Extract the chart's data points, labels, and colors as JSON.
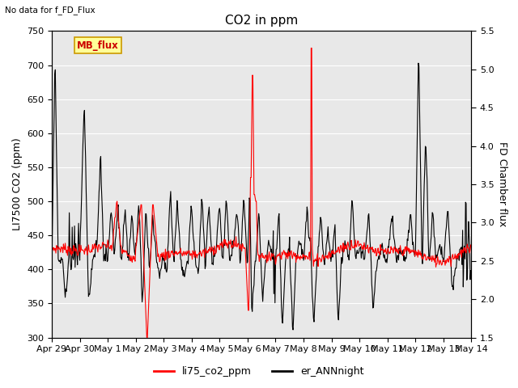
{
  "title": "CO2 in ppm",
  "top_left_text": "No data for f_FD_Flux",
  "ylabel_left": "LI7500 CO2 (ppm)",
  "ylabel_right": "FD Chamber flux",
  "ylim_left": [
    300,
    750
  ],
  "ylim_right": [
    1.5,
    5.5
  ],
  "yticks_left": [
    300,
    350,
    400,
    450,
    500,
    550,
    600,
    650,
    700,
    750
  ],
  "yticks_right": [
    1.5,
    2.0,
    2.5,
    3.0,
    3.5,
    4.0,
    4.5,
    5.0,
    5.5
  ],
  "xtick_labels": [
    "Apr 29",
    "Apr 30",
    "May 1",
    "May 2",
    "May 3",
    "May 4",
    "May 5",
    "May 6",
    "May 7",
    "May 8",
    "May 9",
    "May 10",
    "May 11",
    "May 12",
    "May 13",
    "May 14"
  ],
  "legend_labels": [
    "li75_co2_ppm",
    "er_ANNnight"
  ],
  "legend_colors": [
    "#ff0000",
    "#000000"
  ],
  "box_label": "MB_flux",
  "box_color": "#ffff99",
  "box_edge_color": "#cc9900",
  "background_gray": "#e8e8e8",
  "line_red_color": "#ff0000",
  "line_black_color": "#000000",
  "grid_color": "#ffffff",
  "title_fontsize": 11,
  "label_fontsize": 9,
  "tick_fontsize": 8
}
